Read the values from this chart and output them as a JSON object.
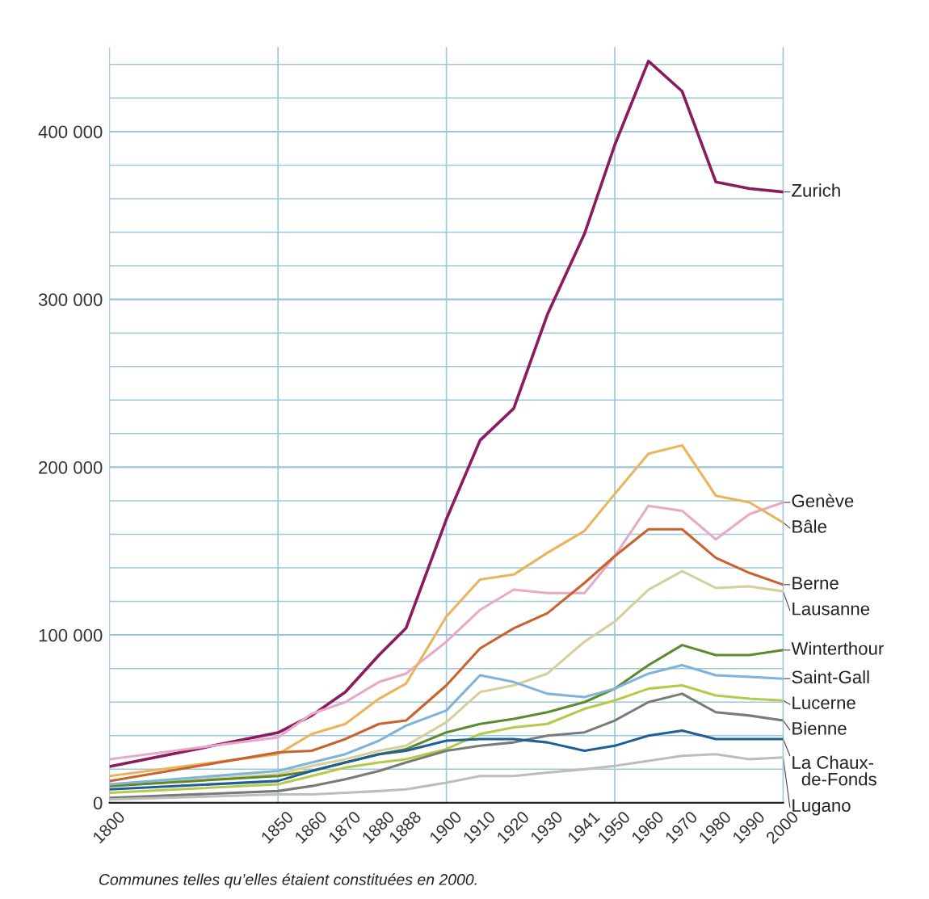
{
  "chart_data": {
    "type": "line",
    "x": [
      1800,
      1850,
      1860,
      1870,
      1880,
      1888,
      1900,
      1910,
      1920,
      1930,
      1941,
      1950,
      1960,
      1970,
      1980,
      1990,
      2000
    ],
    "xlim": [
      1800,
      2000
    ],
    "xticks": [
      1800,
      1850,
      1860,
      1870,
      1880,
      1888,
      1900,
      1910,
      1920,
      1930,
      1941,
      1950,
      1960,
      1970,
      1980,
      1990,
      2000
    ],
    "ylim": [
      0,
      450000
    ],
    "yticks": [
      0,
      {
        "value": 20000,
        "label": null
      },
      {
        "value": 40000,
        "label": null
      },
      {
        "value": 60000,
        "label": null
      },
      {
        "value": 80000,
        "label": null
      },
      {
        "value": 100000,
        "label": "100 000"
      },
      {
        "value": 120000,
        "label": null
      },
      {
        "value": 140000,
        "label": null
      },
      {
        "value": 160000,
        "label": null
      },
      {
        "value": 180000,
        "label": null
      },
      {
        "value": 200000,
        "label": "200 000"
      },
      {
        "value": 220000,
        "label": null
      },
      {
        "value": 240000,
        "label": null
      },
      {
        "value": 260000,
        "label": null
      },
      {
        "value": 280000,
        "label": null
      },
      {
        "value": 300000,
        "label": "300 000"
      },
      {
        "value": 320000,
        "label": null
      },
      {
        "value": 340000,
        "label": null
      },
      {
        "value": 360000,
        "label": null
      },
      {
        "value": 380000,
        "label": null
      },
      {
        "value": 400000,
        "label": "400 000"
      },
      {
        "value": 420000,
        "label": null
      },
      {
        "value": 440000,
        "label": null
      }
    ],
    "grid": "y",
    "ref_lines": [
      {
        "axis": "x",
        "value": 1850,
        "label": null,
        "color": "#9cc8dc"
      },
      {
        "axis": "x",
        "value": 1900,
        "label": null,
        "color": "#9cc8dc"
      },
      {
        "axis": "x",
        "value": 1950,
        "label": null,
        "color": "#9cc8dc"
      }
    ],
    "series": [
      {
        "name": "Zurich",
        "color": "#8b1a5e",
        "values": [
          21600,
          41800,
          52000,
          66000,
          88000,
          104000,
          169000,
          216000,
          235000,
          291000,
          339000,
          392000,
          442000,
          424000,
          370000,
          366000,
          364000
        ]
      },
      {
        "name": "Genève",
        "color": "#e8a9c8",
        "values": [
          26000,
          39000,
          53000,
          60000,
          72000,
          77000,
          96000,
          115000,
          127000,
          125000,
          125000,
          147000,
          177000,
          174000,
          157000,
          172000,
          179000
        ]
      },
      {
        "name": "Bâle",
        "color": "#e9b45c",
        "values": [
          16000,
          29000,
          41000,
          47000,
          62000,
          71000,
          111000,
          133000,
          136000,
          149000,
          162000,
          184000,
          208000,
          213000,
          183000,
          179000,
          167000
        ]
      },
      {
        "name": "Berne",
        "color": "#c8622e",
        "values": [
          13000,
          30000,
          31000,
          38000,
          47000,
          49000,
          70000,
          92000,
          104000,
          113000,
          131000,
          147000,
          163000,
          163000,
          146000,
          137000,
          130000
        ]
      },
      {
        "name": "Lausanne",
        "color": "#d6cf9c",
        "values": [
          10000,
          17000,
          22000,
          26000,
          31000,
          34000,
          48000,
          66000,
          70000,
          77000,
          96000,
          108000,
          127000,
          138000,
          128000,
          129000,
          126000
        ]
      },
      {
        "name": "Winterthour",
        "color": "#5e8a2e",
        "values": [
          10000,
          16000,
          19000,
          24000,
          29000,
          32000,
          42000,
          47000,
          50000,
          54000,
          60000,
          68000,
          82000,
          94000,
          88000,
          88000,
          91000
        ]
      },
      {
        "name": "Saint-Gall",
        "color": "#7fb3d9",
        "values": [
          11000,
          19000,
          24000,
          29000,
          37000,
          46000,
          55000,
          76000,
          72000,
          65000,
          63000,
          68000,
          77000,
          82000,
          76000,
          75000,
          74000
        ]
      },
      {
        "name": "Lucerne",
        "color": "#b5c94a",
        "values": [
          6000,
          11000,
          16000,
          21000,
          24000,
          26000,
          32000,
          41000,
          45000,
          47000,
          56000,
          61000,
          68000,
          70000,
          64000,
          62000,
          61000
        ]
      },
      {
        "name": "Bienne",
        "color": "#7a7a7a",
        "values": [
          3000,
          7000,
          10000,
          14000,
          19000,
          24000,
          31000,
          34000,
          36000,
          40000,
          42000,
          49000,
          60000,
          65000,
          54000,
          52000,
          49000
        ]
      },
      {
        "name": "La Chaux-\n  de-Fonds",
        "color": "#1f5f95",
        "values": [
          8000,
          13000,
          19000,
          24000,
          29000,
          31000,
          37000,
          38000,
          38000,
          36000,
          31000,
          34000,
          40000,
          43000,
          38000,
          38000,
          38000
        ]
      },
      {
        "name": "Lugano",
        "color": "#bdbdbd",
        "values": [
          2000,
          5000,
          5000,
          6000,
          7000,
          8000,
          12000,
          16000,
          16000,
          18000,
          20000,
          22000,
          25000,
          28000,
          29000,
          26000,
          27000
        ]
      }
    ],
    "annotations": [
      "Communes telles qu’elles étaient constituées en 2000."
    ]
  }
}
